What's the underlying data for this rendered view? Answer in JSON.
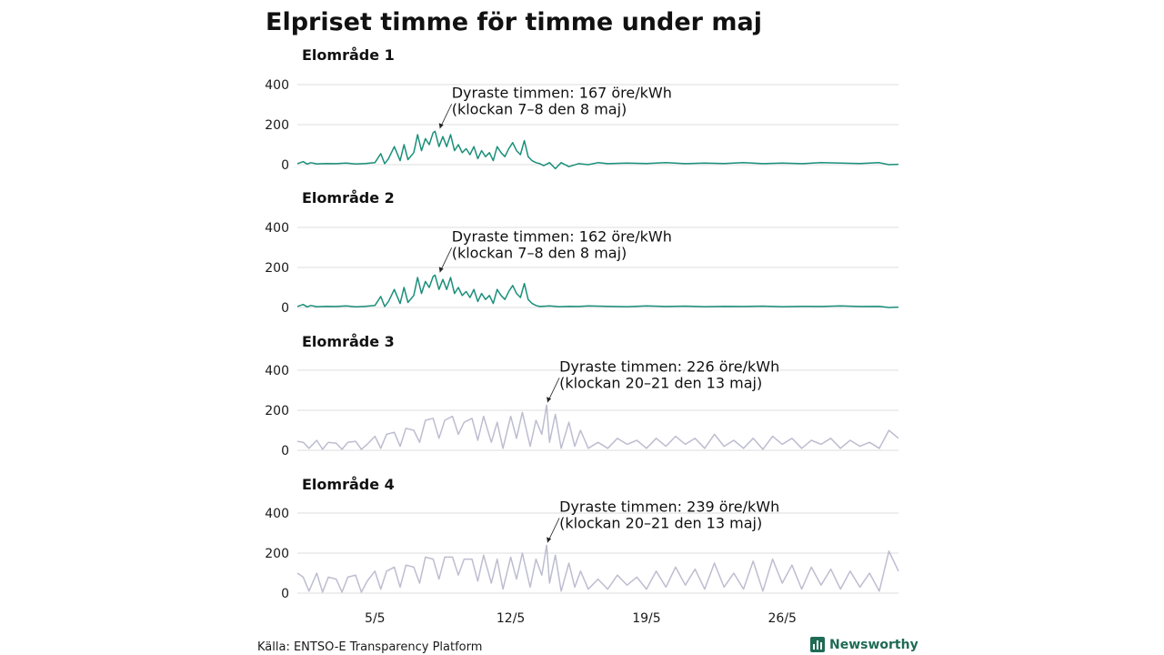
{
  "title": "Elpriset timme för timme under maj",
  "source": "Källa: ENTSO-E Transparency Platform",
  "brand": "Newsworthy",
  "colors": {
    "highlight": "#1a8f7a",
    "muted": "#bdbdd0",
    "brand": "#1f6b55"
  },
  "chart_data": [
    {
      "type": "line",
      "title": "Elområde 1",
      "color": "#1a8f7a",
      "ylim": [
        0,
        400
      ],
      "yticks": [
        0,
        200,
        400
      ],
      "xlim": [
        1,
        31.99
      ],
      "xticks": [
        {
          "x": 5,
          "label": "5/5"
        },
        {
          "x": 12,
          "label": "12/5"
        },
        {
          "x": 19,
          "label": "19/5"
        },
        {
          "x": 26,
          "label": "26/5"
        }
      ],
      "series": [
        {
          "x": [
            1,
            1.3,
            1.5,
            1.7,
            2,
            2.5,
            3,
            3.5,
            4,
            4.5,
            5,
            5.3,
            5.5,
            5.7,
            6,
            6.3,
            6.5,
            6.7,
            7,
            7.2,
            7.4,
            7.6,
            7.8,
            8,
            8.1,
            8.3,
            8.5,
            8.7,
            8.9,
            9.1,
            9.3,
            9.5,
            9.7,
            9.9,
            10.1,
            10.3,
            10.5,
            10.7,
            10.9,
            11.1,
            11.3,
            11.5,
            11.7,
            11.9,
            12.1,
            12.3,
            12.5,
            12.7,
            12.9,
            13.1,
            13.3,
            13.5,
            13.7,
            14,
            14.3,
            14.6,
            15,
            15.5,
            16,
            16.5,
            17,
            18,
            19,
            20,
            21,
            22,
            23,
            24,
            25,
            26,
            27,
            28,
            29,
            30,
            31,
            31.5,
            31.99
          ],
          "y": [
            5,
            15,
            3,
            10,
            4,
            6,
            5,
            8,
            3,
            6,
            10,
            55,
            5,
            30,
            90,
            20,
            100,
            25,
            60,
            150,
            70,
            130,
            100,
            160,
            167,
            90,
            140,
            90,
            150,
            70,
            100,
            60,
            80,
            50,
            90,
            30,
            70,
            40,
            60,
            20,
            90,
            60,
            40,
            80,
            110,
            70,
            50,
            120,
            40,
            20,
            10,
            5,
            -5,
            10,
            -20,
            10,
            -10,
            5,
            0,
            10,
            5,
            8,
            6,
            10,
            5,
            8,
            6,
            10,
            5,
            8,
            5,
            10,
            8,
            6,
            10,
            0,
            2
          ]
        }
      ],
      "annotation": {
        "x": 8.3,
        "y": 167,
        "line1": "Dyraste timmen: 167 öre/kWh",
        "line2": "(klockan 7–8 den 8 maj)"
      }
    },
    {
      "type": "line",
      "title": "Elområde 2",
      "color": "#1a8f7a",
      "ylim": [
        0,
        400
      ],
      "yticks": [
        0,
        200,
        400
      ],
      "xlim": [
        1,
        31.99
      ],
      "series": [
        {
          "x": [
            1,
            1.3,
            1.5,
            1.7,
            2,
            2.5,
            3,
            3.5,
            4,
            4.5,
            5,
            5.3,
            5.5,
            5.7,
            6,
            6.3,
            6.5,
            6.7,
            7,
            7.2,
            7.4,
            7.6,
            7.8,
            8,
            8.1,
            8.3,
            8.5,
            8.7,
            8.9,
            9.1,
            9.3,
            9.5,
            9.7,
            9.9,
            10.1,
            10.3,
            10.5,
            10.7,
            10.9,
            11.1,
            11.3,
            11.5,
            11.7,
            11.9,
            12.1,
            12.3,
            12.5,
            12.7,
            12.9,
            13.1,
            13.3,
            13.5,
            14,
            14.5,
            15,
            15.5,
            16,
            17,
            18,
            19,
            20,
            21,
            22,
            23,
            24,
            25,
            26,
            27,
            28,
            29,
            30,
            31,
            31.5,
            31.99
          ],
          "y": [
            5,
            15,
            3,
            10,
            4,
            6,
            5,
            8,
            3,
            6,
            10,
            55,
            5,
            30,
            90,
            20,
            100,
            25,
            60,
            150,
            70,
            130,
            100,
            155,
            162,
            90,
            140,
            90,
            150,
            70,
            100,
            60,
            80,
            50,
            90,
            30,
            70,
            40,
            60,
            20,
            90,
            60,
            40,
            80,
            110,
            70,
            50,
            120,
            40,
            20,
            10,
            5,
            8,
            4,
            6,
            5,
            8,
            6,
            4,
            8,
            5,
            7,
            4,
            6,
            5,
            7,
            4,
            6,
            5,
            8,
            5,
            6,
            0,
            2
          ]
        }
      ],
      "annotation": {
        "x": 8.3,
        "y": 162,
        "line1": "Dyraste timmen: 162 öre/kWh",
        "line2": "(klockan 7–8 den 8 maj)"
      }
    },
    {
      "type": "line",
      "title": "Elområde 3",
      "color": "#bdbdd0",
      "ylim": [
        0,
        400
      ],
      "yticks": [
        0,
        200,
        400
      ],
      "xlim": [
        1,
        31.99
      ],
      "series": [
        {
          "x": [
            1,
            1.3,
            1.6,
            2,
            2.3,
            2.6,
            3,
            3.3,
            3.6,
            4,
            4.3,
            4.6,
            5,
            5.3,
            5.6,
            6,
            6.3,
            6.6,
            7,
            7.3,
            7.6,
            8,
            8.3,
            8.6,
            9,
            9.3,
            9.6,
            10,
            10.3,
            10.6,
            11,
            11.3,
            11.6,
            12,
            12.3,
            12.6,
            13,
            13.3,
            13.6,
            13.85,
            14,
            14.3,
            14.6,
            15,
            15.3,
            15.6,
            16,
            16.5,
            17,
            17.5,
            18,
            18.5,
            19,
            19.5,
            20,
            20.5,
            21,
            21.5,
            22,
            22.5,
            23,
            23.5,
            24,
            24.5,
            25,
            25.5,
            26,
            26.5,
            27,
            27.5,
            28,
            28.5,
            29,
            29.5,
            30,
            30.5,
            31,
            31.5,
            31.99
          ],
          "y": [
            45,
            40,
            10,
            50,
            5,
            40,
            35,
            5,
            40,
            45,
            5,
            30,
            70,
            10,
            80,
            90,
            20,
            110,
            100,
            40,
            150,
            160,
            60,
            150,
            170,
            80,
            140,
            160,
            50,
            170,
            40,
            140,
            10,
            170,
            60,
            190,
            20,
            150,
            80,
            226,
            40,
            180,
            10,
            140,
            20,
            100,
            10,
            40,
            10,
            60,
            30,
            50,
            10,
            60,
            20,
            70,
            30,
            60,
            10,
            80,
            20,
            50,
            10,
            60,
            5,
            70,
            30,
            60,
            10,
            50,
            30,
            60,
            10,
            50,
            20,
            40,
            10,
            100,
            60
          ]
        }
      ],
      "annotation": {
        "x": 13.85,
        "y": 226,
        "line1": "Dyraste timmen: 226 öre/kWh",
        "line2": "(klockan 20–21 den 13 maj)"
      }
    },
    {
      "type": "line",
      "title": "Elområde 4",
      "color": "#bdbdd0",
      "ylim": [
        0,
        400
      ],
      "yticks": [
        0,
        200,
        400
      ],
      "xlim": [
        1,
        31.99
      ],
      "xticks": [
        {
          "x": 5,
          "label": "5/5"
        },
        {
          "x": 12,
          "label": "12/5"
        },
        {
          "x": 19,
          "label": "19/5"
        },
        {
          "x": 26,
          "label": "26/5"
        }
      ],
      "series": [
        {
          "x": [
            1,
            1.3,
            1.6,
            2,
            2.3,
            2.6,
            3,
            3.3,
            3.6,
            4,
            4.3,
            4.6,
            5,
            5.3,
            5.6,
            6,
            6.3,
            6.6,
            7,
            7.3,
            7.6,
            8,
            8.3,
            8.6,
            9,
            9.3,
            9.6,
            10,
            10.3,
            10.6,
            11,
            11.3,
            11.6,
            12,
            12.3,
            12.6,
            13,
            13.3,
            13.6,
            13.85,
            14,
            14.3,
            14.6,
            15,
            15.3,
            15.6,
            16,
            16.5,
            17,
            17.5,
            18,
            18.5,
            19,
            19.5,
            20,
            20.5,
            21,
            21.5,
            22,
            22.5,
            23,
            23.5,
            24,
            24.5,
            25,
            25.5,
            26,
            26.5,
            27,
            27.5,
            28,
            28.5,
            29,
            29.5,
            30,
            30.5,
            31,
            31.5,
            31.99
          ],
          "y": [
            100,
            80,
            10,
            100,
            5,
            80,
            70,
            5,
            80,
            90,
            5,
            60,
            110,
            20,
            110,
            130,
            30,
            140,
            130,
            50,
            180,
            170,
            70,
            180,
            180,
            90,
            170,
            170,
            60,
            190,
            50,
            170,
            20,
            180,
            70,
            200,
            30,
            170,
            90,
            239,
            50,
            190,
            10,
            150,
            30,
            110,
            20,
            70,
            20,
            90,
            40,
            80,
            20,
            110,
            30,
            130,
            40,
            120,
            20,
            150,
            30,
            100,
            20,
            160,
            10,
            170,
            50,
            140,
            20,
            130,
            40,
            120,
            20,
            110,
            30,
            100,
            10,
            210,
            110
          ]
        }
      ],
      "annotation": {
        "x": 13.85,
        "y": 239,
        "line1": "Dyraste timmen: 239 öre/kWh",
        "line2": "(klockan 20–21 den 13 maj)"
      }
    }
  ]
}
